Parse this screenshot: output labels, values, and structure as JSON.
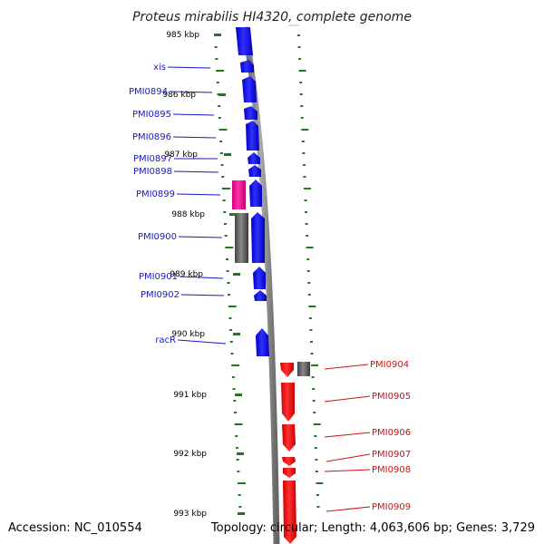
{
  "title": "Proteus mirabilis HI4320, complete genome",
  "footer": {
    "accession": "Accession: NC_010554",
    "topology": "Topology: circular; Length: 4,063,606 bp; Genes: 3,729"
  },
  "ticks": [
    "985 kbp",
    "986 kbp",
    "987 kbp",
    "988 kbp",
    "989 kbp",
    "990 kbp",
    "991 kbp",
    "992 kbp",
    "993 kbp"
  ],
  "colors": {
    "forward_gene": "#1a1aee",
    "reverse_gene": "#ee1111",
    "rna_gene": "#ee1199",
    "pseudo_gene": "#666666",
    "backbone": "#888888",
    "tick": "#227722",
    "label_left": "#1818c8",
    "label_right": "#d01010"
  },
  "genes_left": [
    {
      "label": "xis"
    },
    {
      "label": "PMI0894"
    },
    {
      "label": "PMI0895"
    },
    {
      "label": "PMI0896"
    },
    {
      "label": "PMI0897"
    },
    {
      "label": "PMI0898"
    },
    {
      "label": "PMI0899"
    },
    {
      "label": "PMI0900"
    },
    {
      "label": "PMI0901"
    },
    {
      "label": "PMI0902"
    },
    {
      "label": "racR"
    }
  ],
  "genes_right": [
    {
      "label": "PMI0904"
    },
    {
      "label": "PMI0905"
    },
    {
      "label": "PMI0906"
    },
    {
      "label": "PMI0907"
    },
    {
      "label": "PMI0908"
    },
    {
      "label": "PMI0909"
    }
  ]
}
